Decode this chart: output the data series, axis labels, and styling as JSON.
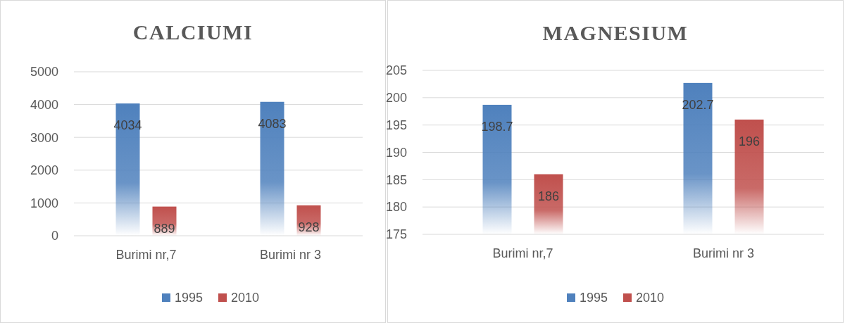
{
  "chart_data": [
    {
      "type": "bar",
      "title": "CALCIUMI",
      "categories": [
        "Burimi nr,7",
        "Burimi nr 3"
      ],
      "series": [
        {
          "name": "1995",
          "color": "#4f81bd",
          "values": [
            4034,
            4083
          ]
        },
        {
          "name": "2010",
          "color": "#c0504d",
          "values": [
            889,
            928
          ]
        }
      ],
      "ylim": [
        0,
        5000
      ],
      "yticks": [
        0,
        1000,
        2000,
        3000,
        4000,
        5000
      ],
      "grid": "y",
      "legend": "bottom",
      "data_labels": true
    },
    {
      "type": "bar",
      "title": "MAGNESIUM",
      "categories": [
        "Burimi nr,7",
        "Burimi nr 3"
      ],
      "series": [
        {
          "name": "1995",
          "color": "#4f81bd",
          "values": [
            198.7,
            202.7
          ]
        },
        {
          "name": "2010",
          "color": "#c0504d",
          "values": [
            186,
            196
          ]
        }
      ],
      "ylim": [
        175,
        205
      ],
      "yticks": [
        175,
        180,
        185,
        190,
        195,
        200,
        205
      ],
      "grid": "y",
      "legend": "bottom",
      "data_labels": true
    }
  ]
}
